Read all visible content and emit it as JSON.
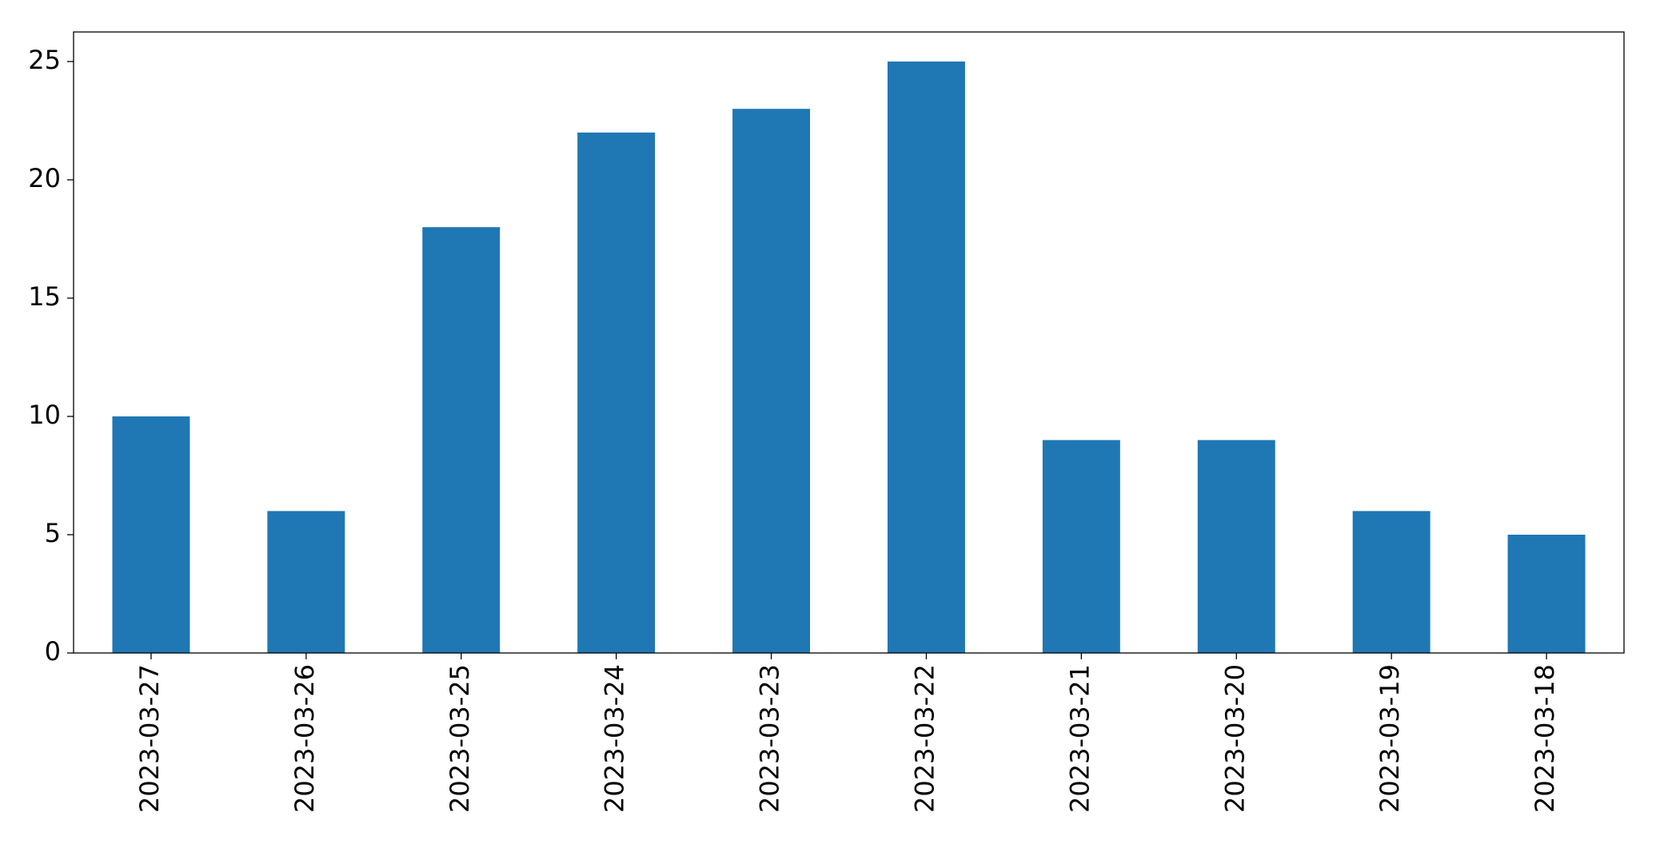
{
  "chart_data": {
    "type": "bar",
    "categories": [
      "2023-03-27",
      "2023-03-26",
      "2023-03-25",
      "2023-03-24",
      "2023-03-23",
      "2023-03-22",
      "2023-03-21",
      "2023-03-20",
      "2023-03-19",
      "2023-03-18"
    ],
    "values": [
      10,
      6,
      18,
      22,
      23,
      25,
      9,
      9,
      6,
      5
    ],
    "color": "#1f77b4",
    "ylim": [
      0,
      26.25
    ],
    "yticks": [
      0,
      5,
      10,
      15,
      20,
      25
    ],
    "grid": false
  }
}
